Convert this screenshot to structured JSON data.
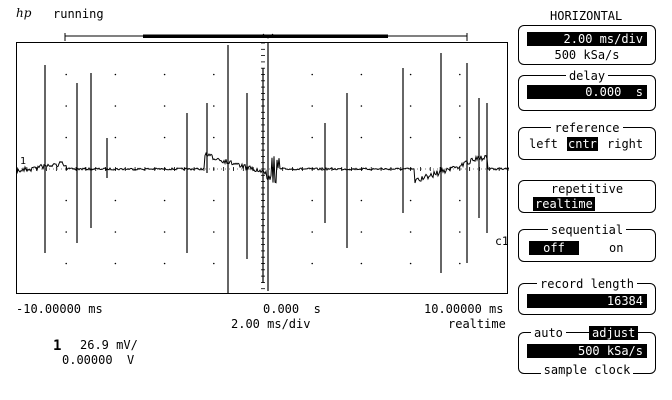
{
  "header": {
    "logo": "hp",
    "status": "running"
  },
  "panel": {
    "title": "HORIZONTAL",
    "timebase": {
      "value": "2.00 ms/div",
      "sample_rate": "500 kSa/s"
    },
    "delay": {
      "label": "delay",
      "value": "0.000  s"
    },
    "reference": {
      "label": "reference",
      "options": [
        "left",
        "cntr",
        "right"
      ],
      "selected": "cntr"
    },
    "repetitive": {
      "label": "repetitive",
      "value": "realtime"
    },
    "sequential": {
      "label": "sequential",
      "off": "off",
      "on": "on",
      "selected": "off"
    },
    "record_length": {
      "label": "record length",
      "value": "16384"
    },
    "sample_clock": {
      "auto": "auto",
      "adjust": "adjust",
      "value": "500 kSa/s",
      "label": "sample clock"
    }
  },
  "scope": {
    "x_left": "-10.00000 ms",
    "x_center": "0.000  s",
    "x_right": "10.00000 ms",
    "scale": "2.00 ms/div",
    "mode": "realtime",
    "channel_marker": "1",
    "channel_tag": "c1",
    "channel": {
      "number": "1",
      "volts_per_div": "26.9 mV/",
      "offset": "0.00000  V"
    }
  }
}
